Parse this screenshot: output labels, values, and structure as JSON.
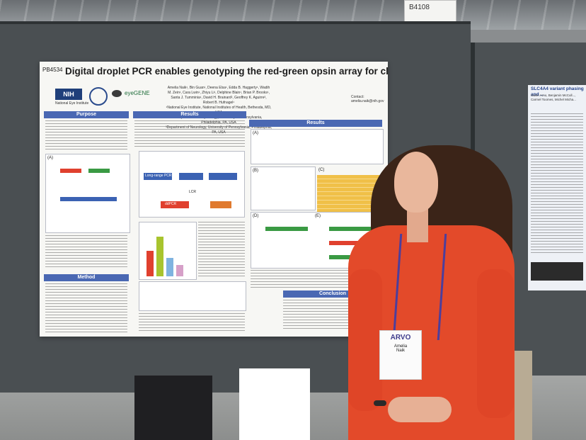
{
  "scene": {
    "description_tag": "conference-poster-photo",
    "colors": {
      "poster_blue": "#4a68b3",
      "shirt": "#e34a2a",
      "board": "#4a4f52"
    }
  },
  "poster": {
    "id": "PB4534",
    "title": "Digital droplet PCR enables genotyping the red-green opsin array for clinical diagnostics",
    "authors": "Amelia Naik¹, Bin Guan¹, Deena Elsa¹, Edda B. Haggerty¹, Wadih M. Zein¹, Cara Lwin¹, Zhiyu Li¹, Delphine Blain¹, Brian P. Brooks¹, Santa J. Tumminia¹, David H. Brainard², Geoffrey K. Aguirre³, Robert B. Hufnagel¹",
    "affiliations": [
      "¹National Eye Institute, National Institutes of Health, Bethesda, MD, USA",
      "²Department of Psychology, University of Pennsylvania, Philadelphia, PA, USA",
      "³Department of Neurology, University of Pennsylvania, Philadelphia, PA, USA"
    ],
    "contact": "Contact: amelia.naik@nih.gov",
    "logos": {
      "nih": "NIH",
      "nih_sub": "National Eye Institute",
      "eyegene": "eyeGENE"
    },
    "sections": {
      "purpose": "Purpose",
      "results_left": "Results",
      "method": "Method",
      "results_right": "Results",
      "conclusion": "Conclusion"
    },
    "figure_labels": [
      "(A)",
      "(B)",
      "(C)",
      "(D)",
      "(E)"
    ],
    "workflow": {
      "long_range_pcr": "Long-range PCR",
      "ddpcr": "ddPCR",
      "lcr": "LCR"
    }
  },
  "booth_sign": {
    "text": "B4108"
  },
  "badge": {
    "logo": "ARVO",
    "first_name": "Amelia",
    "last_name": "Naik"
  },
  "right_poster": {
    "title": "SLC4A4 variant phasing and ...",
    "authors": "Gavin Arno, Benjamin McCull..., Carmel Toomes, Michel Micha..."
  }
}
